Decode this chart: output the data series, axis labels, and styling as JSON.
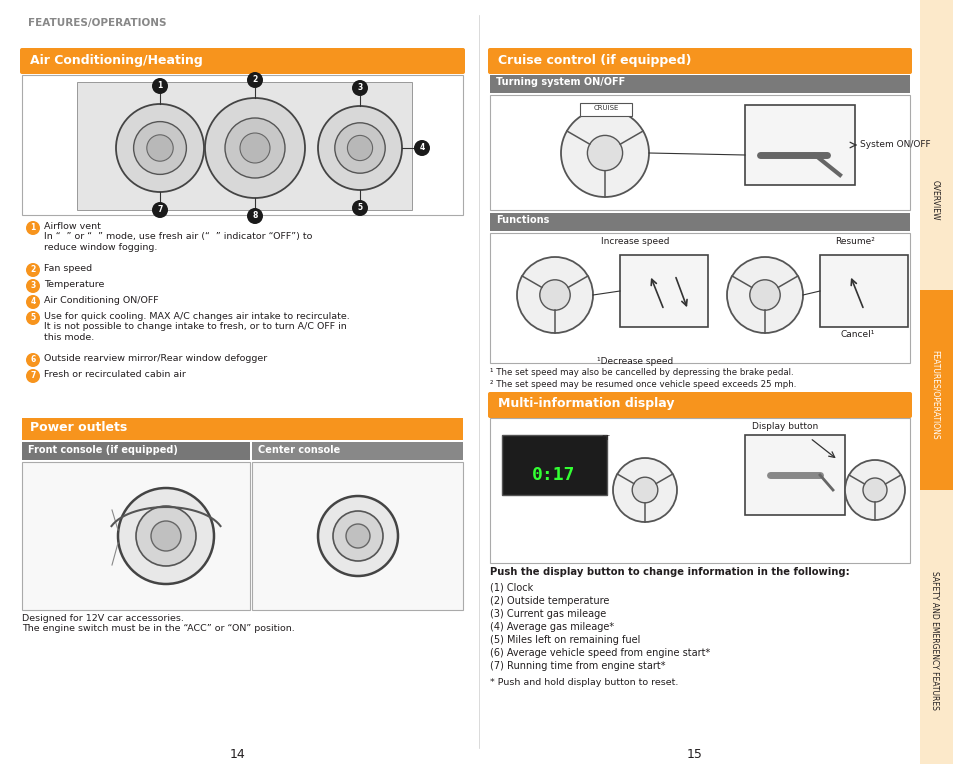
{
  "bg": "#ffffff",
  "orange": "#f7941d",
  "gray_sub": "#7a7a7a",
  "dark": "#231f20",
  "light_box": "#f5f5f5",
  "tan_sidebar": "#fce9ca",
  "page_title": "FEATURES/OPERATIONS",
  "sec_ac": "Air Conditioning/Heating",
  "sec_power": "Power outlets",
  "sub_front": "Front console (if equipped)",
  "sub_center": "Center console",
  "sec_cruise": "Cruise control (if equipped)",
  "sub_turning": "Turning system ON/OFF",
  "sub_functions": "Functions",
  "sec_mid": "Multi-information display",
  "ac_items": [
    [
      "1",
      "Airflow vent\nIn “  ” or “  ” mode, use fresh air (“  ” indicator “OFF”) to\nreduce window fogging.",
      true
    ],
    [
      "2",
      "Fan speed",
      false
    ],
    [
      "3",
      "Temperature",
      false
    ],
    [
      "4",
      "Air Conditioning ON/OFF",
      false
    ],
    [
      "5",
      "Use for quick cooling. MAX A/C changes air intake to recirculate.\nIt is not possible to change intake to fresh, or to turn A/C OFF in\nthis mode.",
      false
    ],
    [
      "6",
      "Outside rearview mirror/Rear window defogger",
      false
    ],
    [
      "7",
      "Fresh or recirculated cabin air",
      false
    ]
  ],
  "power_note": "Designed for 12V car accessories.\nThe engine switch must be in the “ACC” or “ON” position.",
  "system_onoff": "System ON/OFF",
  "increase_speed": "Increase speed",
  "decrease_speed": "¹Decrease speed",
  "resume": "Resume²",
  "cancel": "Cancel¹",
  "cruise_fn1": "¹ The set speed may also be cancelled by depressing the brake pedal.",
  "cruise_fn2": "² The set speed may be resumed once vehicle speed exceeds 25 mph.",
  "display_button": "Display button",
  "mid_bold": "Push the display button to change information in the following:",
  "mid_items": [
    "(1) Clock",
    "(2) Outside temperature",
    "(3) Current gas mileage",
    "(4) Average gas mileage*",
    "(5) Miles left on remaining fuel",
    "(6) Average vehicle speed from engine start*",
    "(7) Running time from engine start*"
  ],
  "mid_note": "* Push and hold display button to reset.",
  "pg_left": "14",
  "pg_right": "15"
}
